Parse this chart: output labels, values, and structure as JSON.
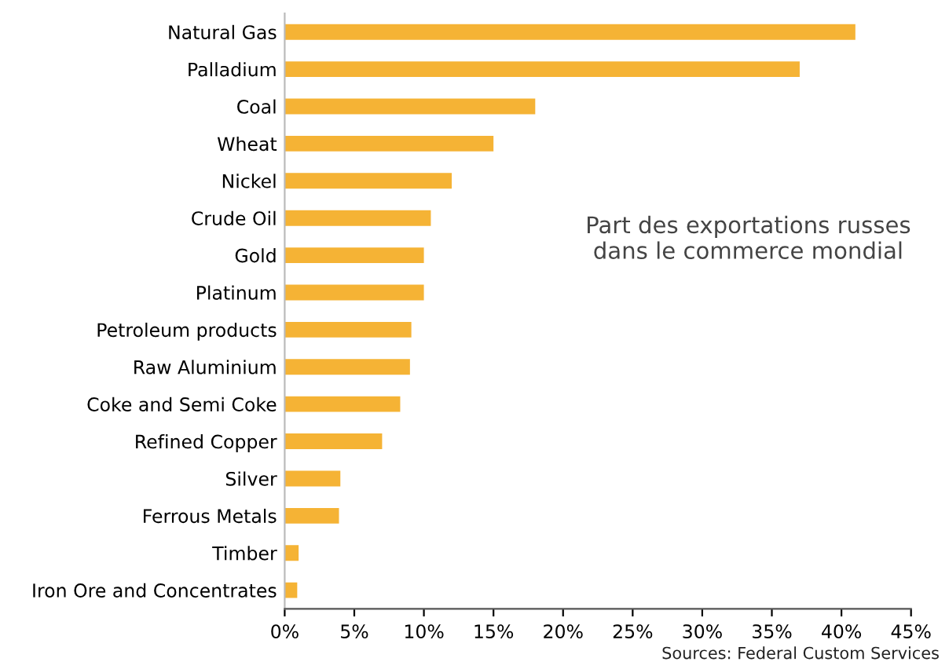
{
  "chart_data": {
    "type": "bar",
    "orientation": "horizontal",
    "categories": [
      "Natural Gas",
      "Palladium",
      "Coal",
      "Wheat",
      "Nickel",
      "Crude Oil",
      "Gold",
      "Platinum",
      "Petroleum products",
      "Raw Aluminium",
      "Coke and Semi Coke",
      "Refined Copper",
      "Silver",
      "Ferrous Metals",
      "Timber",
      "Iron Ore and Concentrates"
    ],
    "values": [
      41,
      37,
      18,
      15,
      12,
      10.5,
      10,
      10,
      9.1,
      9,
      8.3,
      7,
      4,
      3.9,
      1,
      0.9
    ],
    "color": "#f5b335",
    "xlim": [
      0,
      45
    ],
    "xticks": [
      {
        "value": 0,
        "label": "0%"
      },
      {
        "value": 5,
        "label": "5%"
      },
      {
        "value": 10,
        "label": "10%"
      },
      {
        "value": 15,
        "label": "15%"
      },
      {
        "value": 20,
        "label": "20%"
      },
      {
        "value": 25,
        "label": "25%"
      },
      {
        "value": 30,
        "label": "30%"
      },
      {
        "value": 35,
        "label": "35%"
      },
      {
        "value": 40,
        "label": "40%"
      },
      {
        "value": 45,
        "label": "45%"
      }
    ],
    "grid": false,
    "annotations": [
      "Part des exportations russes\ndans le commerce mondial",
      "Sources: Federal Custom Services"
    ]
  }
}
